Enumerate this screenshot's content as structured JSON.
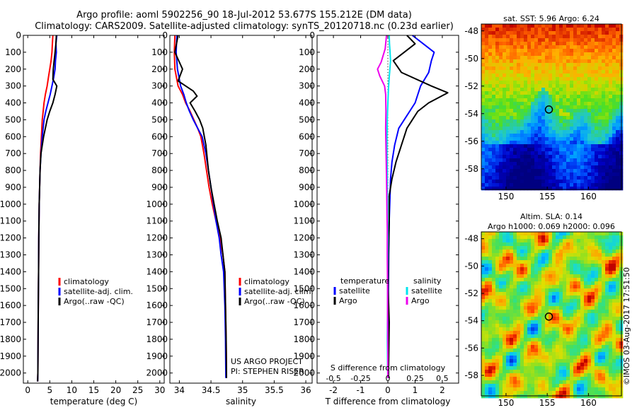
{
  "header": {
    "line1": "Argo profile: aoml 5902256_90 18-Jul-2012 53.677S 155.212E (DM data)",
    "line2": "Climatology: CARS2009. Satellite-adjusted climatology: synTS_20120718.nc (0.23d earlier)"
  },
  "credits": {
    "project": "US ARGO PROJECT",
    "pi": "PI: STEPHEN RISER",
    "watermark": "©IMOS 03-Aug-2017 17:51:50"
  },
  "colors": {
    "climatology": "#ff0000",
    "satellite": "#0000ff",
    "argo": "#000000",
    "satellite_s": "#00e5ee",
    "argo_s": "#ee00ee"
  },
  "chart_data": [
    {
      "type": "line",
      "xlabel": "temperature (deg C)",
      "xlim": [
        -1,
        31
      ],
      "xticks": [
        0,
        5,
        10,
        15,
        20,
        25,
        30
      ],
      "ylim": [
        2060,
        0
      ],
      "yticks": [
        0,
        100,
        200,
        300,
        400,
        500,
        600,
        700,
        800,
        900,
        1000,
        1100,
        1200,
        1300,
        1400,
        1500,
        1600,
        1700,
        1800,
        1900,
        2000
      ],
      "legend": [
        "climatology",
        "satellite-adj. clim.",
        "Argo(..raw -QC)"
      ],
      "legend_position": "center-left",
      "series": [
        {
          "name": "climatology",
          "color": "#ff0000",
          "x": [
            5.7,
            5.6,
            5.5,
            5.3,
            5.0,
            4.7,
            4.4,
            4.0,
            3.7,
            3.5,
            3.3,
            3.1,
            2.9,
            2.8,
            2.7,
            2.6,
            2.5,
            2.45,
            2.4,
            2.35,
            2.3,
            2.25
          ],
          "y": [
            0,
            50,
            100,
            150,
            200,
            250,
            300,
            350,
            400,
            450,
            500,
            600,
            700,
            800,
            900,
            1000,
            1200,
            1400,
            1600,
            1800,
            2000,
            2050
          ]
        },
        {
          "name": "satellite-adj. clim.",
          "color": "#0000ff",
          "x": [
            6.6,
            6.4,
            6.5,
            6.3,
            6.2,
            5.9,
            5.5,
            5.1,
            4.6,
            4.1,
            3.7,
            3.3,
            3.0,
            2.8,
            2.7,
            2.6,
            2.5,
            2.45,
            2.4,
            2.35,
            2.3,
            2.25
          ],
          "y": [
            0,
            50,
            100,
            150,
            200,
            250,
            300,
            350,
            400,
            450,
            500,
            600,
            700,
            800,
            900,
            1000,
            1200,
            1400,
            1600,
            1800,
            2000,
            2050
          ]
        },
        {
          "name": "Argo(..raw -QC)",
          "color": "#000000",
          "x": [
            6.5,
            6.4,
            6.2,
            6.0,
            5.8,
            5.7,
            6.6,
            6.2,
            5.7,
            5.0,
            4.4,
            3.6,
            3.0,
            2.8,
            2.7,
            2.6,
            2.5,
            2.45,
            2.4,
            2.35,
            2.3,
            2.25
          ],
          "y": [
            0,
            50,
            100,
            150,
            200,
            260,
            300,
            350,
            400,
            450,
            500,
            600,
            700,
            800,
            900,
            1000,
            1200,
            1400,
            1600,
            1800,
            2000,
            2050
          ]
        }
      ]
    },
    {
      "type": "line",
      "xlabel": "salinity",
      "xlim": [
        33.85,
        36.1
      ],
      "xticks": [
        34,
        34.5,
        35,
        35.5,
        36
      ],
      "ylim": [
        2060,
        0
      ],
      "legend": [
        "climatology",
        "satellite-adj. clim.",
        "Argo(..raw -QC)"
      ],
      "legend_position": "center-right",
      "series": [
        {
          "name": "climatology",
          "color": "#ff0000",
          "x": [
            33.93,
            33.92,
            33.93,
            33.98,
            34.05,
            34.1,
            34.17,
            34.23,
            34.29,
            34.34,
            34.39,
            34.43,
            34.47,
            34.52,
            34.58,
            34.64,
            34.69,
            34.72,
            34.73,
            34.74,
            34.745
          ],
          "y": [
            0,
            100,
            200,
            300,
            350,
            400,
            450,
            500,
            550,
            600,
            700,
            800,
            900,
            1000,
            1100,
            1200,
            1300,
            1400,
            1600,
            1800,
            2030
          ]
        },
        {
          "name": "satellite-adj. clim.",
          "color": "#0000ff",
          "x": [
            33.96,
            33.95,
            33.97,
            34.02,
            34.07,
            34.11,
            34.16,
            34.22,
            34.29,
            34.36,
            34.42,
            34.46,
            34.5,
            34.54,
            34.58,
            34.63,
            34.66,
            34.7,
            34.72,
            34.73,
            34.735
          ],
          "y": [
            0,
            100,
            200,
            300,
            350,
            400,
            450,
            500,
            550,
            600,
            700,
            800,
            900,
            1000,
            1100,
            1200,
            1300,
            1400,
            1600,
            1800,
            2030
          ]
        },
        {
          "name": "Argo(..raw -QC)",
          "color": "#000000",
          "x": [
            33.98,
            33.93,
            34.05,
            33.98,
            34.22,
            34.28,
            34.17,
            34.25,
            34.32,
            34.37,
            34.42,
            34.46,
            34.5,
            34.55,
            34.6,
            34.66,
            34.69,
            34.72,
            34.73,
            34.74,
            34.745
          ],
          "y": [
            0,
            100,
            200,
            270,
            330,
            360,
            400,
            450,
            500,
            550,
            650,
            800,
            900,
            1000,
            1100,
            1200,
            1300,
            1400,
            1600,
            1800,
            2030
          ]
        }
      ]
    },
    {
      "type": "line",
      "xlabel": "T difference from climatology",
      "xlabel_top": "S difference from climatology",
      "xlim": [
        -2.6,
        2.6
      ],
      "xticks": [
        -2,
        -1,
        0,
        1,
        2
      ],
      "xticks_s": [
        -0.5,
        -0.25,
        0,
        0.25,
        0.5
      ],
      "ylim": [
        2060,
        0
      ],
      "legend": [
        "temperature",
        "satellite",
        "Argo",
        "salinity",
        "satellite",
        "Argo"
      ],
      "legend_position": "bottom",
      "series": [
        {
          "name": "temperature satellite",
          "color": "#0000ff",
          "x": [
            0.9,
            1.3,
            1.7,
            1.6,
            1.5,
            1.2,
            1.0,
            0.8,
            0.6,
            0.4,
            0.25,
            0.15,
            0.1,
            0.08,
            0.05,
            0.03,
            0.02,
            0.01,
            0.01,
            0.02
          ],
          "y": [
            0,
            50,
            100,
            150,
            220,
            300,
            400,
            450,
            500,
            550,
            650,
            750,
            850,
            950,
            1100,
            1300,
            1500,
            1700,
            1900,
            2030
          ]
        },
        {
          "name": "temperature Argo",
          "color": "#000000",
          "x": [
            0.7,
            1.0,
            0.6,
            0.2,
            0.5,
            1.6,
            2.2,
            1.5,
            1.1,
            0.9,
            0.7,
            0.5,
            0.3,
            0.15,
            0.05,
            0.05,
            0.02,
            0.01,
            0.05,
            0.02
          ],
          "y": [
            0,
            50,
            100,
            150,
            220,
            300,
            340,
            400,
            450,
            500,
            550,
            650,
            750,
            850,
            950,
            1100,
            1300,
            1500,
            1700,
            2030
          ]
        },
        {
          "name": "salinity satellite",
          "color": "#00e5ee",
          "x": [
            0.05,
            0.06,
            0.08,
            0.1,
            0.05,
            0.02,
            0.0,
            -0.02,
            -0.03,
            -0.03,
            -0.02,
            -0.02,
            -0.01,
            -0.01,
            0.0,
            -0.01,
            -0.01,
            -0.02,
            -0.01,
            0.0
          ],
          "y": [
            0,
            50,
            100,
            150,
            250,
            320,
            400,
            500,
            600,
            700,
            800,
            900,
            1000,
            1100,
            1200,
            1400,
            1600,
            1800,
            1950,
            2030
          ]
        },
        {
          "name": "salinity Argo",
          "color": "#ee00ee",
          "x": [
            -0.05,
            -0.1,
            -0.25,
            -0.38,
            -0.3,
            -0.12,
            -0.08,
            -0.07,
            -0.08,
            -0.07,
            -0.06,
            -0.05,
            -0.04,
            -0.03,
            -0.02,
            -0.02,
            -0.01,
            -0.01,
            0.0,
            0.0
          ],
          "y": [
            0,
            80,
            160,
            200,
            240,
            300,
            350,
            450,
            550,
            650,
            750,
            850,
            950,
            1050,
            1150,
            1300,
            1500,
            1700,
            1900,
            2030
          ]
        }
      ]
    },
    {
      "type": "heatmap",
      "title": "sat. SST: 5.96 Argo: 6.24",
      "xlim": [
        147,
        164
      ],
      "ylim": [
        -59.5,
        -47.5
      ],
      "xticks": [
        150,
        155,
        160
      ],
      "yticks": [
        -48,
        -50,
        -52,
        -54,
        -56,
        -58
      ],
      "marker": {
        "lon": 155.2,
        "lat": -53.7
      }
    },
    {
      "type": "heatmap",
      "title": "Altim. SLA: 0.14",
      "subtitle": "Argo h1000: 0.069 h2000: 0.096",
      "xlim": [
        147,
        164
      ],
      "ylim": [
        -59.5,
        -47.5
      ],
      "xticks": [
        150,
        155,
        160
      ],
      "yticks": [
        -48,
        -50,
        -52,
        -54,
        -56,
        -58
      ],
      "marker": {
        "lon": 155.2,
        "lat": -53.7
      }
    }
  ]
}
